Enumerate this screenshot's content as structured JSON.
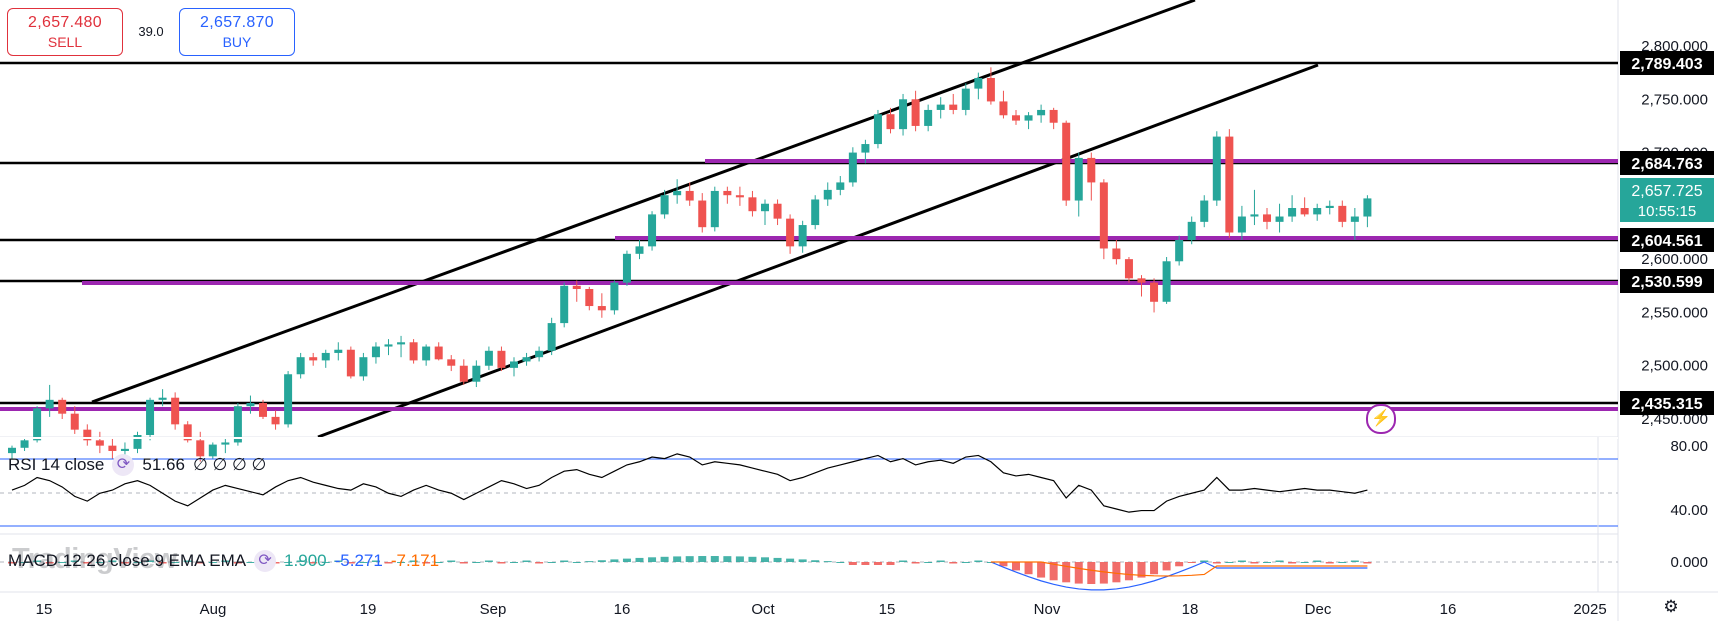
{
  "trade": {
    "sell_price": "2,657.480",
    "sell_label": "SELL",
    "buy_price": "2,657.870",
    "buy_label": "BUY",
    "spread": "39.0"
  },
  "rsi": {
    "label": "RSI 14 close",
    "value": "51.66",
    "extra": "∅ ∅ ∅ ∅",
    "levels": [
      "80.00",
      "40.00"
    ]
  },
  "macd": {
    "label": "MACD 12 26 close 9 EMA EMA",
    "values": [
      "1.900",
      "-5.271",
      "-7.171"
    ],
    "colors": [
      "#26a69a",
      "#2962ff",
      "#ff6d00"
    ],
    "level": "0.000"
  },
  "watermark": "TradingView",
  "icons": {
    "settings": "settings-icon",
    "alert": "alert-icon",
    "indicator": "cycle-icon"
  },
  "colors": {
    "up": "#26a69a",
    "down": "#ef5350",
    "support": "#9c27b0",
    "line": "#000000"
  },
  "chart_data": {
    "type": "candlestick",
    "price_ticks": [
      "2,800.000",
      "2,750.000",
      "2,700.000",
      "2,650.000",
      "2,600.000",
      "2,550.000",
      "2,500.000",
      "2,450.000"
    ],
    "time_ticks": [
      "15",
      "Aug",
      "19",
      "Sep",
      "16",
      "Oct",
      "15",
      "Nov",
      "18",
      "Dec",
      "16",
      "2025"
    ],
    "ylim": [
      2410,
      2820
    ],
    "last_price": "2,657.725",
    "countdown": "10:55:15",
    "horizontal_levels": [
      {
        "label": "2,789.403",
        "price": 2789.403,
        "color": "black"
      },
      {
        "label": "2,684.763",
        "price": 2684.763,
        "color": "black"
      },
      {
        "label": "2,604.561",
        "price": 2604.561,
        "color": "black"
      },
      {
        "label": "2,530.599",
        "price": 2530.599,
        "color": "black"
      },
      {
        "label": "2,435.315",
        "price": 2435.315,
        "color": "black"
      }
    ],
    "candles": [
      [
        2418,
        2425,
        2412,
        2423
      ],
      [
        2423,
        2432,
        2420,
        2430
      ],
      [
        2430,
        2462,
        2428,
        2460
      ],
      [
        2460,
        2482,
        2452,
        2468
      ],
      [
        2468,
        2470,
        2450,
        2455
      ],
      [
        2455,
        2462,
        2436,
        2440
      ],
      [
        2440,
        2445,
        2425,
        2430
      ],
      [
        2430,
        2438,
        2418,
        2425
      ],
      [
        2425,
        2432,
        2412,
        2420
      ],
      [
        2420,
        2428,
        2410,
        2422
      ],
      [
        2422,
        2438,
        2418,
        2435
      ],
      [
        2435,
        2470,
        2430,
        2468
      ],
      [
        2468,
        2478,
        2462,
        2470
      ],
      [
        2470,
        2475,
        2440,
        2445
      ],
      [
        2445,
        2448,
        2428,
        2430
      ],
      [
        2430,
        2438,
        2410,
        2415
      ],
      [
        2415,
        2428,
        2412,
        2426
      ],
      [
        2426,
        2432,
        2418,
        2428
      ],
      [
        2428,
        2465,
        2425,
        2462
      ],
      [
        2462,
        2472,
        2455,
        2465
      ],
      [
        2465,
        2468,
        2450,
        2452
      ],
      [
        2452,
        2458,
        2440,
        2445
      ],
      [
        2445,
        2495,
        2442,
        2492
      ],
      [
        2492,
        2512,
        2488,
        2508
      ],
      [
        2508,
        2512,
        2500,
        2505
      ],
      [
        2505,
        2515,
        2498,
        2512
      ],
      [
        2512,
        2522,
        2505,
        2515
      ],
      [
        2515,
        2518,
        2488,
        2490
      ],
      [
        2490,
        2512,
        2486,
        2508
      ],
      [
        2508,
        2522,
        2502,
        2518
      ],
      [
        2518,
        2525,
        2510,
        2520
      ],
      [
        2520,
        2528,
        2508,
        2522
      ],
      [
        2522,
        2525,
        2502,
        2505
      ],
      [
        2505,
        2520,
        2500,
        2518
      ],
      [
        2518,
        2522,
        2505,
        2506
      ],
      [
        2506,
        2510,
        2495,
        2500
      ],
      [
        2500,
        2506,
        2482,
        2485
      ],
      [
        2485,
        2505,
        2480,
        2500
      ],
      [
        2500,
        2518,
        2496,
        2514
      ],
      [
        2514,
        2518,
        2495,
        2498
      ],
      [
        2498,
        2508,
        2490,
        2504
      ],
      [
        2504,
        2512,
        2500,
        2508
      ],
      [
        2508,
        2518,
        2504,
        2514
      ],
      [
        2514,
        2545,
        2510,
        2540
      ],
      [
        2540,
        2578,
        2536,
        2575
      ],
      [
        2575,
        2580,
        2560,
        2572
      ],
      [
        2572,
        2574,
        2552,
        2556
      ],
      [
        2556,
        2568,
        2545,
        2552
      ],
      [
        2552,
        2580,
        2548,
        2578
      ],
      [
        2578,
        2608,
        2575,
        2605
      ],
      [
        2605,
        2618,
        2600,
        2612
      ],
      [
        2612,
        2645,
        2608,
        2642
      ],
      [
        2642,
        2665,
        2638,
        2660
      ],
      [
        2660,
        2675,
        2652,
        2664
      ],
      [
        2664,
        2672,
        2650,
        2655
      ],
      [
        2655,
        2662,
        2625,
        2630
      ],
      [
        2630,
        2668,
        2626,
        2664
      ],
      [
        2664,
        2668,
        2652,
        2660
      ],
      [
        2660,
        2668,
        2650,
        2658
      ],
      [
        2658,
        2664,
        2640,
        2645
      ],
      [
        2645,
        2656,
        2632,
        2652
      ],
      [
        2652,
        2656,
        2632,
        2638
      ],
      [
        2638,
        2642,
        2605,
        2612
      ],
      [
        2612,
        2636,
        2606,
        2632
      ],
      [
        2632,
        2660,
        2628,
        2656
      ],
      [
        2656,
        2672,
        2650,
        2665
      ],
      [
        2665,
        2678,
        2660,
        2672
      ],
      [
        2672,
        2705,
        2668,
        2700
      ],
      [
        2700,
        2712,
        2690,
        2708
      ],
      [
        2708,
        2740,
        2704,
        2736
      ],
      [
        2736,
        2742,
        2718,
        2722
      ],
      [
        2722,
        2755,
        2716,
        2750
      ],
      [
        2750,
        2758,
        2720,
        2725
      ],
      [
        2725,
        2745,
        2720,
        2740
      ],
      [
        2740,
        2752,
        2732,
        2745
      ],
      [
        2745,
        2755,
        2736,
        2740
      ],
      [
        2740,
        2765,
        2735,
        2760
      ],
      [
        2760,
        2775,
        2750,
        2770
      ],
      [
        2770,
        2780,
        2745,
        2748
      ],
      [
        2748,
        2758,
        2732,
        2735
      ],
      [
        2735,
        2740,
        2726,
        2730
      ],
      [
        2730,
        2738,
        2722,
        2735
      ],
      [
        2735,
        2745,
        2728,
        2740
      ],
      [
        2740,
        2742,
        2722,
        2728
      ],
      [
        2728,
        2730,
        2650,
        2655
      ],
      [
        2655,
        2700,
        2640,
        2695
      ],
      [
        2695,
        2700,
        2655,
        2672
      ],
      [
        2672,
        2675,
        2600,
        2610
      ],
      [
        2610,
        2618,
        2595,
        2600
      ],
      [
        2600,
        2602,
        2578,
        2582
      ],
      [
        2582,
        2585,
        2565,
        2578
      ],
      [
        2578,
        2582,
        2550,
        2560
      ],
      [
        2560,
        2602,
        2558,
        2598
      ],
      [
        2598,
        2622,
        2594,
        2618
      ],
      [
        2618,
        2640,
        2614,
        2635
      ],
      [
        2635,
        2660,
        2630,
        2655
      ],
      [
        2655,
        2720,
        2650,
        2715
      ],
      [
        2715,
        2722,
        2620,
        2625
      ],
      [
        2625,
        2650,
        2618,
        2640
      ],
      [
        2640,
        2665,
        2632,
        2642
      ],
      [
        2642,
        2648,
        2628,
        2635
      ],
      [
        2635,
        2652,
        2625,
        2640
      ],
      [
        2640,
        2660,
        2635,
        2648
      ],
      [
        2648,
        2658,
        2640,
        2642
      ],
      [
        2642,
        2652,
        2636,
        2648
      ],
      [
        2648,
        2655,
        2642,
        2650
      ],
      [
        2650,
        2655,
        2630,
        2635
      ],
      [
        2635,
        2648,
        2618,
        2640
      ],
      [
        2640,
        2660,
        2630,
        2657
      ]
    ],
    "rsi_series": [
      52,
      55,
      60,
      58,
      54,
      48,
      45,
      50,
      52,
      56,
      58,
      55,
      50,
      45,
      42,
      47,
      52,
      55,
      53,
      51,
      49,
      54,
      58,
      60,
      57,
      55,
      53,
      52,
      56,
      54,
      50,
      48,
      52,
      55,
      52,
      50,
      46,
      50,
      54,
      58,
      56,
      53,
      55,
      60,
      64,
      65,
      62,
      60,
      64,
      68,
      70,
      73,
      72,
      75,
      73,
      68,
      70,
      69,
      68,
      66,
      64,
      62,
      58,
      60,
      63,
      66,
      68,
      70,
      72,
      74,
      70,
      72,
      68,
      70,
      71,
      69,
      73,
      74,
      70,
      63,
      61,
      62,
      60,
      58,
      47,
      55,
      52,
      42,
      40,
      38,
      39,
      39,
      45,
      48,
      50,
      52,
      60,
      52,
      52,
      53,
      52,
      51,
      52,
      53,
      52,
      52,
      51,
      50,
      52
    ]
  }
}
